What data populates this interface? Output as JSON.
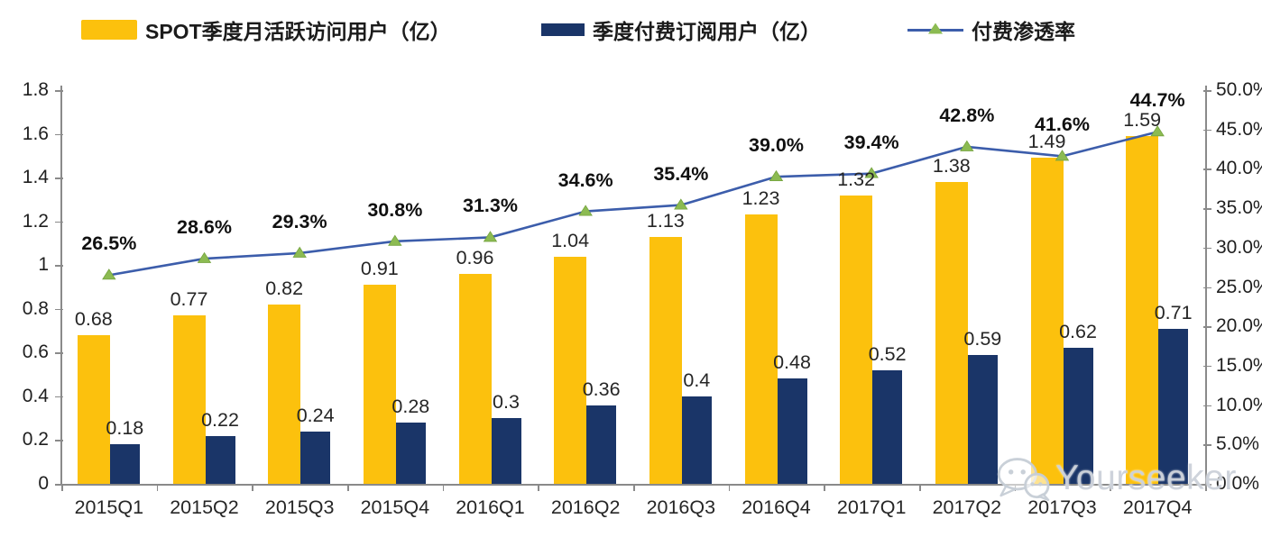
{
  "legend": {
    "items": [
      {
        "label": "SPOT季度月活跃访问用户（亿）",
        "swatch": "bar"
      },
      {
        "label": "季度付费订阅用户（亿）",
        "swatch": "bar"
      },
      {
        "label": "付费渗透率",
        "swatch": "line-triangle"
      }
    ]
  },
  "chart_data": {
    "type": "bar+line combo",
    "categories": [
      "2015Q1",
      "2015Q2",
      "2015Q3",
      "2015Q4",
      "2016Q1",
      "2016Q2",
      "2016Q3",
      "2016Q4",
      "2017Q1",
      "2017Q2",
      "2017Q3",
      "2017Q4"
    ],
    "series": [
      {
        "name": "SPOT季度月活跃访问用户（亿）",
        "kind": "bar",
        "axis": "left",
        "color": "#FCC10D",
        "values": [
          0.68,
          0.77,
          0.82,
          0.91,
          0.96,
          1.04,
          1.13,
          1.23,
          1.32,
          1.38,
          1.49,
          1.59
        ],
        "labels": [
          "0.68",
          "0.77",
          "0.82",
          "0.91",
          "0.96",
          "1.04",
          "1.13",
          "1.23",
          "1.32",
          "1.38",
          "1.49",
          "1.59"
        ]
      },
      {
        "name": "季度付费订阅用户（亿）",
        "kind": "bar",
        "axis": "left",
        "color": "#1A3568",
        "values": [
          0.18,
          0.22,
          0.24,
          0.28,
          0.3,
          0.36,
          0.4,
          0.48,
          0.52,
          0.59,
          0.62,
          0.71
        ],
        "labels": [
          "0.18",
          "0.22",
          "0.24",
          "0.28",
          "0.3",
          "0.36",
          "0.4",
          "0.48",
          "0.52",
          "0.59",
          "0.62",
          "0.71"
        ]
      },
      {
        "name": "付费渗透率",
        "kind": "line",
        "axis": "right",
        "color": "#3C5DAB",
        "marker_color": "#8CBB52",
        "values": [
          26.5,
          28.6,
          29.3,
          30.8,
          31.3,
          34.6,
          35.4,
          39.0,
          39.4,
          42.8,
          41.6,
          44.7
        ],
        "labels": [
          "26.5%",
          "28.6%",
          "29.3%",
          "30.8%",
          "31.3%",
          "34.6%",
          "35.4%",
          "39.0%",
          "39.4%",
          "42.8%",
          "41.6%",
          "44.7%"
        ]
      }
    ],
    "left_axis": {
      "min": 0,
      "max": 1.8,
      "step": 0.2,
      "tick_labels": [
        "0",
        "0.2",
        "0.4",
        "0.6",
        "0.8",
        "1",
        "1.2",
        "1.4",
        "1.6",
        "1.8"
      ]
    },
    "right_axis": {
      "min": 0,
      "max": 50,
      "step": 5,
      "tick_labels": [
        "0.0%",
        "5.0%",
        "10.0%",
        "15.0%",
        "20.0%",
        "25.0%",
        "30.0%",
        "35.0%",
        "40.0%",
        "45.0%",
        "50.0%"
      ]
    },
    "grid": false,
    "legend_position": "top",
    "background": "#FFFFFF"
  },
  "watermark": {
    "text": "Yourseeker",
    "icon": "wechat-icon",
    "color": "#CBD1D9"
  }
}
